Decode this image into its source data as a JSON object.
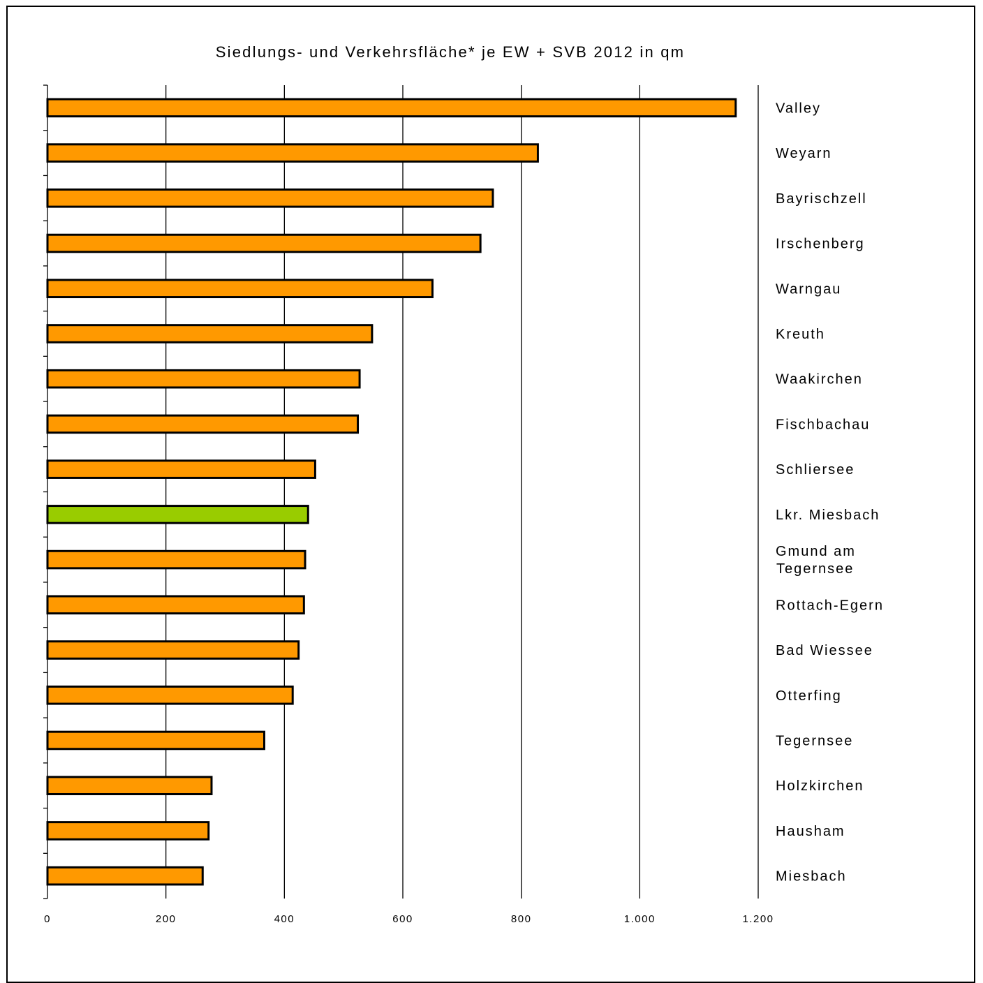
{
  "chart_data": {
    "type": "bar",
    "orientation": "horizontal",
    "title": "Siedlungs- und Verkehrsfläche* je EW + SVB 2012 in qm",
    "xlabel": "",
    "ylabel": "",
    "xlim": [
      0,
      1200
    ],
    "x_ticks": [
      0,
      200,
      400,
      600,
      800,
      1000,
      1200
    ],
    "x_tick_labels": [
      "0",
      "200",
      "400",
      "600",
      "800",
      "1.000",
      "1.200"
    ],
    "grid": "vertical",
    "category_label_position": "right",
    "colors": {
      "default": "#FF9900",
      "highlight": "#99CC00",
      "outline": "#000000",
      "grid": "#000000"
    },
    "categories": [
      [
        "Valley"
      ],
      [
        "Weyarn"
      ],
      [
        "Bayrischzell"
      ],
      [
        "Irschenberg"
      ],
      [
        "Warngau"
      ],
      [
        "Kreuth"
      ],
      [
        "Waakirchen"
      ],
      [
        "Fischbachau"
      ],
      [
        "Schliersee"
      ],
      [
        "Lkr. Miesbach"
      ],
      [
        "Gmund am",
        "Tegernsee"
      ],
      [
        "Rottach-Egern"
      ],
      [
        "Bad Wiessee"
      ],
      [
        "Otterfing"
      ],
      [
        "Tegernsee"
      ],
      [
        "Holzkirchen"
      ],
      [
        "Hausham"
      ],
      [
        "Miesbach"
      ]
    ],
    "values": [
      1162,
      828,
      752,
      731,
      650,
      548,
      527,
      524,
      452,
      440,
      435,
      433,
      424,
      414,
      366,
      277,
      272,
      262
    ],
    "highlight_index": 9
  }
}
